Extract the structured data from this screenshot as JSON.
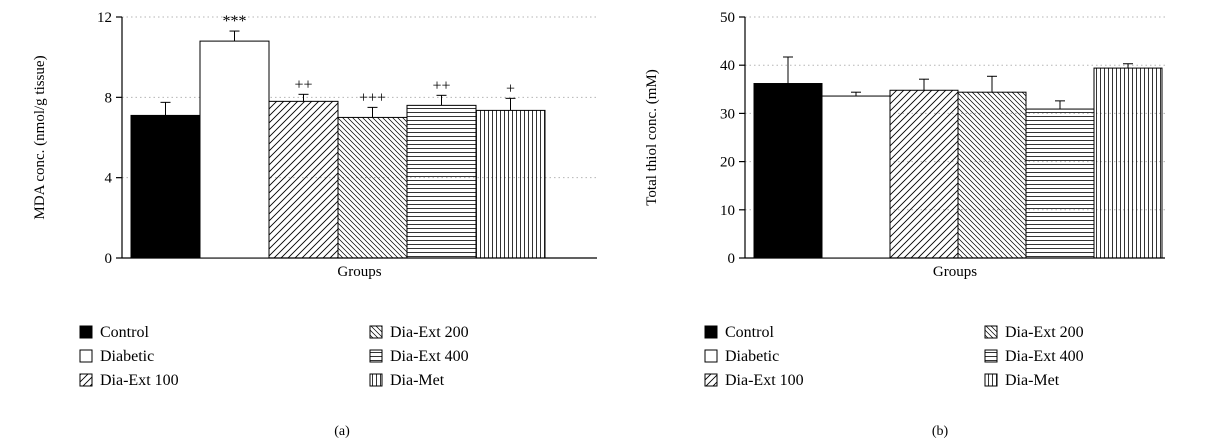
{
  "chart_data": [
    {
      "type": "bar",
      "panel_label": "(a)",
      "categories": [
        "Control",
        "Diabetic",
        "Dia-Ext 100",
        "Dia-Ext 200",
        "Dia-Ext 400",
        "Dia-Met"
      ],
      "values": [
        7.1,
        10.8,
        7.8,
        7.0,
        7.6,
        7.35
      ],
      "errors": [
        0.65,
        0.5,
        0.35,
        0.5,
        0.5,
        0.6
      ],
      "annotations": [
        "",
        "***",
        "++",
        "+++",
        "++",
        "+"
      ],
      "xlabel": "Groups",
      "ylabel": "MDA conc. (nmol/g tissue)",
      "ylim": [
        0,
        12
      ],
      "yticks": [
        "0",
        "4",
        "8",
        "12"
      ],
      "ytick_values": [
        0,
        4,
        8,
        12
      ],
      "grid": "dotted horizontal lines",
      "legend": {
        "placement": "below",
        "entries": [
          "Control",
          "Diabetic",
          "Dia-Ext 100",
          "Dia-Ext 200",
          "Dia-Ext 400",
          "Dia-Met"
        ]
      },
      "patterns": [
        "solid-black",
        "white",
        "diagonal-up",
        "diagonal-down",
        "horizontal",
        "vertical"
      ]
    },
    {
      "type": "bar",
      "panel_label": "(b)",
      "categories": [
        "Control",
        "Diabetic",
        "Dia-Ext 100",
        "Dia-Ext 200",
        "Dia-Ext 400",
        "Dia-Met"
      ],
      "values": [
        36.2,
        33.6,
        34.8,
        34.4,
        30.9,
        39.4
      ],
      "errors": [
        5.5,
        0.8,
        2.3,
        3.3,
        1.7,
        0.9
      ],
      "annotations": [
        "",
        "",
        "",
        "",
        "",
        ""
      ],
      "xlabel": "Groups",
      "ylabel": "Total thiol conc. (mM)",
      "ylim": [
        0,
        50
      ],
      "yticks": [
        "0",
        "10",
        "20",
        "30",
        "40",
        "50"
      ],
      "ytick_values": [
        0,
        10,
        20,
        30,
        40,
        50
      ],
      "grid": "dotted horizontal lines",
      "legend": {
        "placement": "below",
        "entries": [
          "Control",
          "Diabetic",
          "Dia-Ext 100",
          "Dia-Ext 200",
          "Dia-Ext 400",
          "Dia-Met"
        ]
      },
      "patterns": [
        "solid-black",
        "white",
        "diagonal-up",
        "diagonal-down",
        "horizontal",
        "vertical"
      ]
    }
  ]
}
